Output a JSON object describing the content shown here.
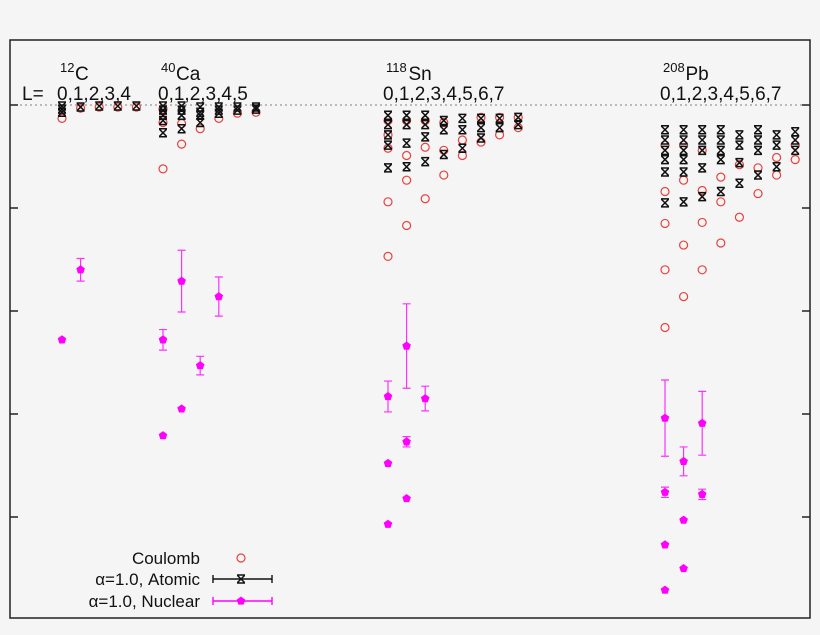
{
  "chart_data": {
    "type": "scatter",
    "title": "",
    "xlabel": "",
    "ylabel": "",
    "grid": false,
    "reference_line": {
      "y": 0,
      "style": "dotted"
    },
    "ylim": [
      -4.95,
      0.63
    ],
    "y_ticks": [
      0,
      -1,
      -2,
      -3,
      -4
    ],
    "l_prefix": "L=",
    "legend": {
      "placement": "bottom-left",
      "entries": [
        {
          "key": "coulomb",
          "label": "Coulomb",
          "color": "#e8413c",
          "marker": "open-circle"
        },
        {
          "key": "atomic",
          "label": "α=1.0,  Atomic",
          "color": "#111111",
          "marker": "cross-errorbar"
        },
        {
          "key": "nuclear",
          "label": "α=1.0, Nuclear",
          "color": "#ff00ff",
          "marker": "filled-pentagon-errorbar"
        }
      ]
    },
    "nuclei": [
      {
        "mass": "12",
        "symbol": "C",
        "l_labels": "0,1,2,3,4",
        "columns": [
          {
            "L": 0,
            "coulomb": [
              -0.13
            ],
            "atomic": [
              -0.01,
              -0.04,
              -0.07
            ],
            "nuclear": [
              {
                "y": -2.28,
                "err": 0
              }
            ]
          },
          {
            "L": 1,
            "coulomb": [
              -0.03
            ],
            "atomic": [
              -0.02
            ],
            "nuclear": [
              {
                "y": -1.6,
                "err": 0.11
              }
            ]
          },
          {
            "L": 2,
            "coulomb": [
              -0.02
            ],
            "atomic": [
              -0.01
            ],
            "nuclear": []
          },
          {
            "L": 3,
            "coulomb": [
              -0.02
            ],
            "atomic": [
              -0.01
            ],
            "nuclear": []
          },
          {
            "L": 4,
            "coulomb": [
              -0.02
            ],
            "atomic": [
              -0.01
            ],
            "nuclear": []
          }
        ]
      },
      {
        "mass": "40",
        "symbol": "Ca",
        "l_labels": "0,1,2,3,4,5",
        "columns": [
          {
            "L": 0,
            "coulomb": [
              -0.04,
              -0.17,
              -0.62
            ],
            "atomic": [
              -0.01,
              -0.05,
              -0.1,
              -0.15,
              -0.27
            ],
            "nuclear": [
              {
                "y": -2.28,
                "err": 0.1
              },
              {
                "y": -3.21,
                "err": 0
              }
            ]
          },
          {
            "L": 1,
            "coulomb": [
              -0.18,
              -0.38
            ],
            "atomic": [
              -0.01,
              -0.05,
              -0.1,
              -0.23
            ],
            "nuclear": [
              {
                "y": -1.71,
                "err": 0.3
              },
              {
                "y": -2.95,
                "err": 0
              }
            ]
          },
          {
            "L": 2,
            "coulomb": [
              -0.23
            ],
            "atomic": [
              -0.02,
              -0.07,
              -0.1,
              -0.17
            ],
            "nuclear": [
              {
                "y": -2.53,
                "err": 0.09
              }
            ]
          },
          {
            "L": 3,
            "coulomb": [
              -0.13
            ],
            "atomic": [
              -0.02,
              -0.05,
              -0.08
            ],
            "nuclear": [
              {
                "y": -1.86,
                "err": 0.19
              }
            ]
          },
          {
            "L": 4,
            "coulomb": [
              -0.08
            ],
            "atomic": [
              -0.02,
              -0.05
            ],
            "nuclear": []
          },
          {
            "L": 5,
            "coulomb": [
              -0.07
            ],
            "atomic": [
              -0.02,
              -0.04
            ],
            "nuclear": []
          }
        ]
      },
      {
        "mass": "118",
        "symbol": "Sn",
        "l_labels": "0,1,2,3,4,5,6,7",
        "columns": [
          {
            "L": 0,
            "coulomb": [
              -0.15,
              -0.29,
              -0.42,
              -0.94,
              -1.47
            ],
            "atomic": [
              -0.1,
              -0.19,
              -0.29,
              -0.39,
              -0.61
            ],
            "nuclear": [
              {
                "y": -2.83,
                "err": 0.15
              },
              {
                "y": -3.48,
                "err": 0
              },
              {
                "y": -4.07,
                "err": 0
              }
            ]
          },
          {
            "L": 1,
            "coulomb": [
              -0.15,
              -0.49,
              -0.73,
              -1.17
            ],
            "atomic": [
              -0.1,
              -0.19,
              -0.37,
              -0.6
            ],
            "nuclear": [
              {
                "y": -2.34,
                "err": 0.41
              },
              {
                "y": -3.27,
                "err": 0.05
              },
              {
                "y": -3.82,
                "err": 0
              }
            ]
          },
          {
            "L": 2,
            "coulomb": [
              -0.15,
              -0.41,
              -0.91
            ],
            "atomic": [
              -0.1,
              -0.19,
              -0.31,
              -0.55
            ],
            "nuclear": [
              {
                "y": -2.85,
                "err": 0.12
              }
            ]
          },
          {
            "L": 3,
            "coulomb": [
              -0.17,
              -0.44,
              -0.68
            ],
            "atomic": [
              -0.15,
              -0.24,
              -0.48
            ],
            "nuclear": []
          },
          {
            "L": 4,
            "coulomb": [
              -0.34,
              -0.49
            ],
            "atomic": [
              -0.13,
              -0.24,
              -0.42
            ],
            "nuclear": []
          },
          {
            "L": 5,
            "coulomb": [
              -0.12,
              -0.36
            ],
            "atomic": [
              -0.13,
              -0.22,
              -0.32
            ],
            "nuclear": []
          },
          {
            "L": 6,
            "coulomb": [
              -0.12,
              -0.29
            ],
            "atomic": [
              -0.13,
              -0.22
            ],
            "nuclear": []
          },
          {
            "L": 7,
            "coulomb": [
              -0.12,
              -0.22
            ],
            "atomic": [
              -0.12,
              -0.19
            ],
            "nuclear": []
          }
        ]
      },
      {
        "mass": "208",
        "symbol": "Pb",
        "l_labels": "0,1,2,3,4,5,6,7",
        "columns": [
          {
            "L": 0,
            "coulomb": [
              -0.39,
              -0.84,
              -1.15,
              -1.6,
              -2.16
            ],
            "atomic": [
              -0.24,
              -0.34,
              -0.44,
              -0.53,
              -0.65,
              -0.95
            ],
            "nuclear": [
              {
                "y": -3.04,
                "err": 0.37
              },
              {
                "y": -3.76,
                "err": 0.05
              },
              {
                "y": -4.27,
                "err": 0
              },
              {
                "y": -4.71,
                "err": 0
              }
            ]
          },
          {
            "L": 1,
            "coulomb": [
              -0.39,
              -0.73,
              -1.36,
              -1.86
            ],
            "atomic": [
              -0.24,
              -0.34,
              -0.44,
              -0.53,
              -0.65,
              -0.94
            ],
            "nuclear": [
              {
                "y": -3.46,
                "err": 0.14
              },
              {
                "y": -4.03,
                "err": 0
              },
              {
                "y": -4.5,
                "err": 0
              }
            ]
          },
          {
            "L": 2,
            "coulomb": [
              -0.44,
              -0.83,
              -1.14,
              -1.6
            ],
            "atomic": [
              -0.24,
              -0.34,
              -0.44,
              -0.61,
              -0.89
            ],
            "nuclear": [
              {
                "y": -3.09,
                "err": 0.31
              },
              {
                "y": -3.78,
                "err": 0.05
              }
            ]
          },
          {
            "L": 3,
            "coulomb": [
              -0.7,
              -0.94,
              -1.34
            ],
            "atomic": [
              -0.24,
              -0.34,
              -0.44,
              -0.53,
              -0.84
            ],
            "nuclear": []
          },
          {
            "L": 4,
            "coulomb": [
              -0.58,
              -1.09
            ],
            "atomic": [
              -0.29,
              -0.39,
              -0.56,
              -0.76
            ],
            "nuclear": []
          },
          {
            "L": 5,
            "coulomb": [
              -0.61,
              -0.86
            ],
            "atomic": [
              -0.24,
              -0.34,
              -0.44,
              -0.68
            ],
            "nuclear": []
          },
          {
            "L": 6,
            "coulomb": [
              -0.51,
              -0.68
            ],
            "atomic": [
              -0.29,
              -0.39,
              -0.6
            ],
            "nuclear": []
          },
          {
            "L": 7,
            "coulomb": [
              -0.39,
              -0.53
            ],
            "atomic": [
              -0.26,
              -0.34,
              -0.44
            ],
            "nuclear": []
          }
        ]
      }
    ]
  }
}
